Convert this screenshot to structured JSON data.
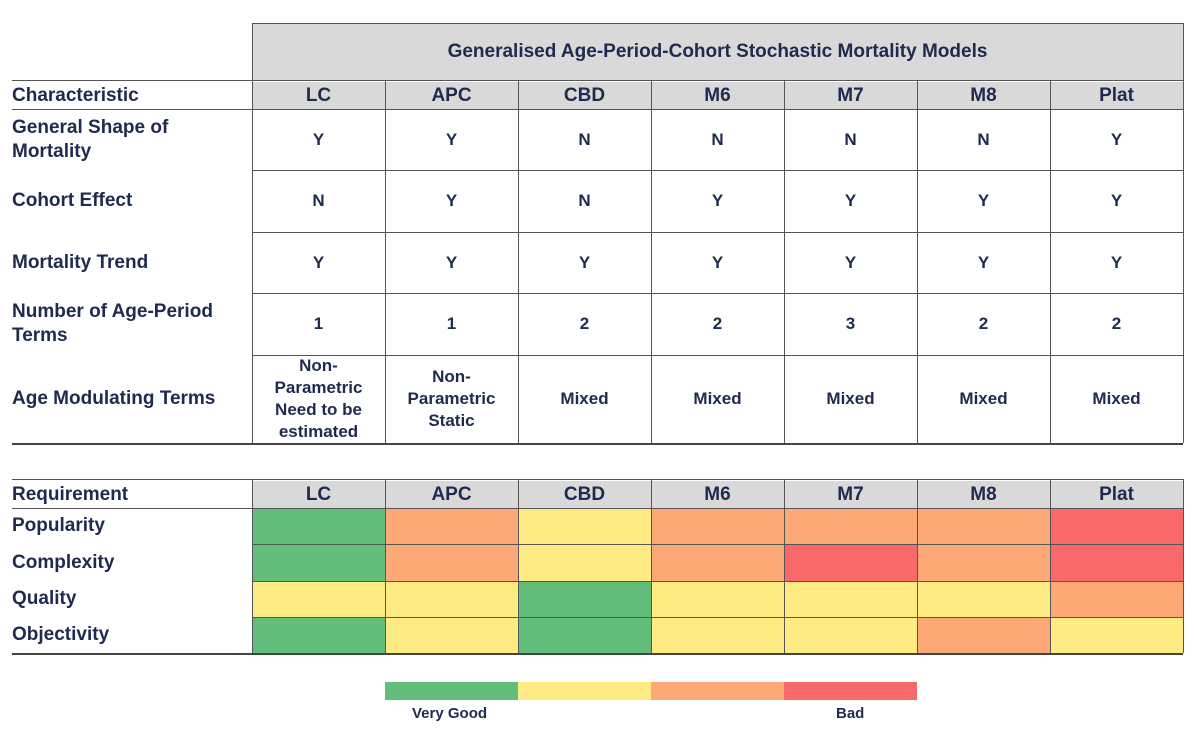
{
  "table1": {
    "title": "Generalised Age-Period-Cohort Stochastic Mortality Models",
    "corner_label": "Characteristic",
    "models": [
      "LC",
      "APC",
      "CBD",
      "M6",
      "M7",
      "M8",
      "Plat"
    ],
    "rows": [
      {
        "label": "General Shape of Mortality",
        "values": [
          "Y",
          "Y",
          "N",
          "N",
          "N",
          "N",
          "Y"
        ]
      },
      {
        "label": "Cohort Effect",
        "values": [
          "N",
          "Y",
          "N",
          "Y",
          "Y",
          "Y",
          "Y"
        ]
      },
      {
        "label": "Mortality Trend",
        "values": [
          "Y",
          "Y",
          "Y",
          "Y",
          "Y",
          "Y",
          "Y"
        ]
      },
      {
        "label": "Number of Age-Period Terms",
        "values": [
          "1",
          "1",
          "2",
          "2",
          "3",
          "2",
          "2"
        ]
      },
      {
        "label": "Age Modulating Terms",
        "values": [
          "Non-Parametric Need to be estimated",
          "Non-Parametric Static",
          "Mixed",
          "Mixed",
          "Mixed",
          "Mixed",
          "Mixed"
        ]
      }
    ]
  },
  "table2": {
    "corner_label": "Requirement",
    "models": [
      "LC",
      "APC",
      "CBD",
      "M6",
      "M7",
      "M8",
      "Plat"
    ],
    "rows": [
      {
        "label": "Popularity",
        "ratings": [
          1,
          3,
          2,
          3,
          3,
          3,
          4
        ]
      },
      {
        "label": "Complexity",
        "ratings": [
          1,
          3,
          2,
          3,
          4,
          3,
          4
        ]
      },
      {
        "label": "Quality",
        "ratings": [
          2,
          2,
          1,
          2,
          2,
          2,
          3
        ]
      },
      {
        "label": "Objectivity",
        "ratings": [
          1,
          2,
          1,
          2,
          2,
          3,
          2
        ]
      }
    ]
  },
  "rating_colors": {
    "1": "#63be7b",
    "2": "#ffeb84",
    "3": "#fca977",
    "4": "#f8696b"
  },
  "legend": {
    "colors": [
      "#63be7b",
      "#ffeb84",
      "#fca977",
      "#f8696b"
    ],
    "left_label": "Very Good",
    "right_label": "Bad"
  }
}
